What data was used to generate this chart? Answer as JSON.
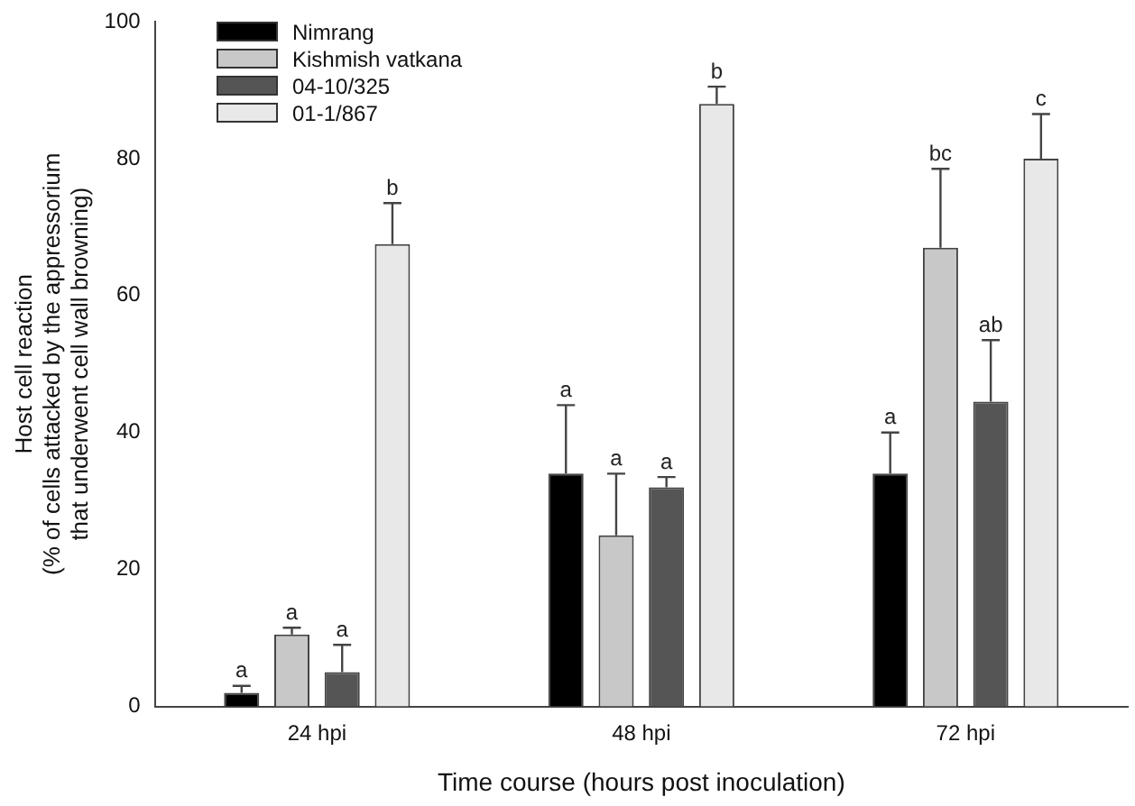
{
  "chart_data": {
    "type": "bar",
    "xlabel": "Time course (hours post inoculation)",
    "ylabel": "Host cell reaction\n(% of cells attacked by the appressorium\nthat underwent cell wall browning)",
    "categories": [
      "24 hpi",
      "48 hpi",
      "72 hpi"
    ],
    "series": [
      {
        "name": "Nimrang",
        "color": "#000000",
        "values": [
          2,
          34,
          34
        ],
        "errors": [
          [
            2,
            3
          ],
          [
            34,
            44
          ],
          [
            34,
            40
          ]
        ]
      },
      {
        "name": "Kishmish vatkana",
        "color": "#c8c8c8",
        "values": [
          10.5,
          25,
          67
        ],
        "errors": [
          [
            10.5,
            11.5
          ],
          [
            25,
            34
          ],
          [
            67,
            78.5
          ]
        ]
      },
      {
        "name": "04-10/325",
        "color": "#555555",
        "values": [
          5,
          32,
          44.5
        ],
        "errors": [
          [
            5,
            9
          ],
          [
            32,
            33.5
          ],
          [
            44.5,
            53.5
          ]
        ]
      },
      {
        "name": "01-1/867",
        "color": "#e8e8e8",
        "values": [
          67.5,
          88,
          80
        ],
        "errors": [
          [
            67.5,
            73.5
          ],
          [
            88,
            90.5
          ],
          [
            80,
            86.5
          ]
        ]
      }
    ],
    "ylim": [
      0,
      100
    ],
    "yticks": [
      0,
      20,
      40,
      60,
      80,
      100
    ],
    "grid": false,
    "legend": "top left",
    "annotations": [
      "a",
      "a",
      "a",
      "b",
      "a",
      "a",
      "a",
      "b",
      "a",
      "bc",
      "ab",
      "c"
    ]
  }
}
